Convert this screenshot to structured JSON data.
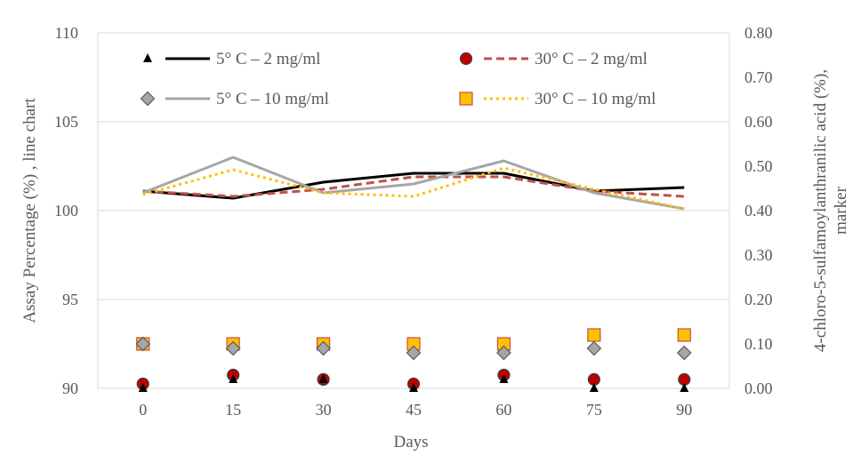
{
  "chart_data": {
    "type": "line",
    "xlabel": "Days",
    "ylabel_left": "Assay Percentage (%) , line chart",
    "ylabel_right_line1": "4-chloro-5-sulfamoylanthranilic  acid (%),",
    "ylabel_right_line2": "marker",
    "x": [
      0,
      15,
      30,
      45,
      60,
      75,
      90
    ],
    "x_tick_labels": [
      "0",
      "15",
      "30",
      "45",
      "60",
      "75",
      "90"
    ],
    "ylim_left": [
      90,
      110
    ],
    "y_ticks_left": [
      "90",
      "95",
      "100",
      "105",
      "110"
    ],
    "ylim_right": [
      0,
      0.8
    ],
    "y_ticks_right": [
      "0.00",
      "0.10",
      "0.20",
      "0.30",
      "0.40",
      "0.50",
      "0.60",
      "0.70",
      "0.80"
    ],
    "grid": "horizontal",
    "legend_position": "top",
    "series": [
      {
        "name": "5°  C – 2 mg/ml",
        "line_color": "#000000",
        "line_style": "solid",
        "marker": "triangle",
        "marker_fill": "#000000",
        "assay": [
          101.1,
          100.7,
          101.6,
          102.1,
          102.1,
          101.1,
          101.3
        ],
        "impurity": [
          0.0,
          0.02,
          0.02,
          0.0,
          0.02,
          0.0,
          0.0
        ]
      },
      {
        "name": "30°  C – 2 mg/ml",
        "line_color": "#c0504d",
        "line_style": "dashed",
        "marker": "circle",
        "marker_fill": "#c00000",
        "assay": [
          101.1,
          100.8,
          101.2,
          101.9,
          101.9,
          101.1,
          100.8
        ],
        "impurity": [
          0.01,
          0.03,
          0.02,
          0.01,
          0.03,
          0.02,
          0.02
        ]
      },
      {
        "name": "5°  C – 10 mg/ml",
        "line_color": "#a6a6a6",
        "line_style": "solid",
        "marker": "diamond",
        "marker_fill": "#a6a6a6",
        "assay": [
          101.0,
          103.0,
          101.0,
          101.5,
          102.8,
          101.0,
          100.1
        ],
        "impurity": [
          0.1,
          0.09,
          0.09,
          0.08,
          0.08,
          0.09,
          0.08
        ]
      },
      {
        "name": "30°  C – 10 mg/ml",
        "line_color": "#ffc000",
        "line_style": "dotted",
        "marker": "square",
        "marker_fill": "#ffc000",
        "assay": [
          100.9,
          102.3,
          101.0,
          100.8,
          102.4,
          101.2,
          100.1
        ],
        "impurity": [
          0.1,
          0.1,
          0.1,
          0.1,
          0.1,
          0.12,
          0.12
        ]
      }
    ]
  }
}
